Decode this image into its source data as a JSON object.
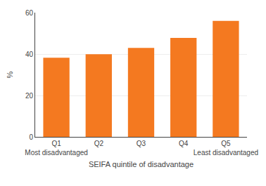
{
  "chart_data": {
    "type": "bar",
    "xlabel": "SEIFA quintile of disadvantage",
    "ylabel": "%",
    "categories": [
      "Q1\nMost disadvantaged",
      "Q2",
      "Q3",
      "Q4",
      "Q5\nLeast disadvantaged"
    ],
    "values": [
      38.2,
      39.9,
      43.0,
      47.8,
      56.0
    ],
    "color": "#F47920",
    "ylim": [
      0,
      60
    ],
    "yticks": [
      0,
      20,
      40,
      60
    ],
    "grid": true
  }
}
